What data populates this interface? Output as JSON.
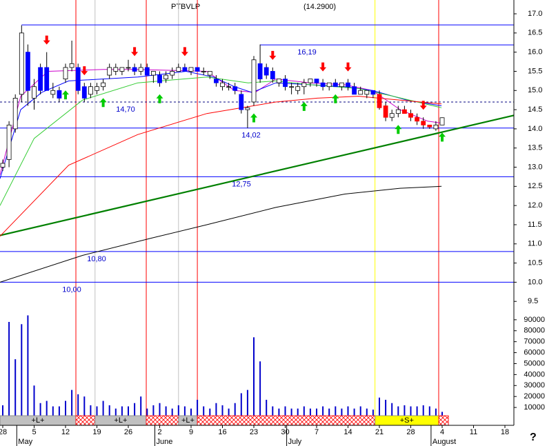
{
  "chart_data": [
    {
      "type": "candlestick",
      "title": "PTBVLP",
      "subtitle": "(14.2900)",
      "up_color": "#ffffff",
      "down_color": "#0000ff",
      "border_color": "#000000",
      "open": [
        13.0,
        13.2,
        14.0,
        14.9,
        16.0,
        14.8,
        15.6,
        15.6,
        14.9,
        15.0,
        15.3,
        15.6,
        15.6,
        15.1,
        14.9,
        15.0,
        15.1,
        15.4,
        15.5,
        15.5,
        15.6,
        15.6,
        15.5,
        15.6,
        15.4,
        15.4,
        15.3,
        15.4,
        15.5,
        15.6,
        15.5,
        15.6,
        15.5,
        15.4,
        15.3,
        15.1,
        15.1,
        15.1,
        14.9,
        14.5,
        14.7,
        15.7,
        15.6,
        15.5,
        15.2,
        15.3,
        15.1,
        15.0,
        15.1,
        15.2,
        15.3,
        15.2,
        15.1,
        15.2,
        15.1,
        15.2,
        15.1,
        14.9,
        14.9,
        15.0,
        14.9,
        14.6,
        14.3,
        14.4,
        14.5,
        14.4,
        14.3,
        14.2,
        14.1,
        14.0,
        14.1,
        null,
        null,
        null,
        null,
        null,
        null,
        null,
        null,
        null,
        null,
        null
      ],
      "high": [
        13.2,
        14.2,
        14.9,
        16.7,
        16.2,
        15.3,
        15.7,
        16.0,
        15.2,
        15.1,
        15.7,
        16.3,
        15.7,
        15.2,
        15.2,
        15.2,
        15.3,
        15.7,
        15.7,
        15.6,
        15.8,
        15.7,
        15.7,
        15.7,
        15.5,
        15.5,
        15.5,
        15.6,
        15.7,
        15.7,
        15.6,
        15.6,
        15.6,
        15.5,
        15.4,
        15.3,
        15.2,
        15.2,
        15.0,
        14.6,
        15.9,
        16.2,
        15.7,
        15.6,
        15.3,
        15.4,
        15.2,
        15.2,
        15.3,
        15.3,
        15.3,
        15.3,
        15.2,
        15.3,
        15.2,
        15.3,
        15.2,
        15.1,
        15.0,
        15.0,
        15.0,
        14.7,
        14.5,
        14.6,
        14.6,
        14.5,
        14.4,
        14.3,
        14.1,
        14.2,
        14.3,
        null,
        null,
        null,
        null,
        null,
        null,
        null,
        null,
        null,
        null,
        null
      ],
      "low": [
        12.9,
        13.0,
        13.9,
        14.7,
        14.6,
        14.5,
        14.9,
        15.0,
        14.8,
        14.7,
        15.2,
        15.5,
        14.9,
        14.7,
        14.8,
        14.9,
        15.0,
        15.3,
        15.4,
        15.4,
        15.5,
        15.4,
        15.4,
        15.4,
        15.2,
        15.1,
        15.2,
        15.3,
        15.5,
        15.5,
        15.4,
        15.5,
        15.4,
        15.3,
        15.1,
        15.0,
        15.0,
        14.9,
        14.4,
        14.02,
        14.6,
        15.2,
        15.3,
        15.2,
        15.1,
        15.0,
        14.9,
        14.9,
        14.9,
        15.1,
        15.1,
        15.0,
        15.0,
        15.1,
        15.0,
        15.0,
        14.9,
        14.9,
        14.8,
        14.8,
        14.5,
        14.2,
        14.2,
        14.3,
        14.4,
        14.2,
        14.1,
        14.0,
        14.0,
        13.95,
        14.1,
        null,
        null,
        null,
        null,
        null,
        null,
        null,
        null,
        null,
        null,
        null
      ],
      "close": [
        13.1,
        14.1,
        14.8,
        16.5,
        15.0,
        15.1,
        15.0,
        15.0,
        15.0,
        14.8,
        15.6,
        15.7,
        15.0,
        14.8,
        15.1,
        15.1,
        15.2,
        15.6,
        15.6,
        15.6,
        15.6,
        15.5,
        15.6,
        15.4,
        15.5,
        15.2,
        15.4,
        15.5,
        15.6,
        15.5,
        15.6,
        15.5,
        15.5,
        15.5,
        15.2,
        15.2,
        15.1,
        15.0,
        14.5,
        14.55,
        15.8,
        15.3,
        15.4,
        15.3,
        15.3,
        15.1,
        15.1,
        15.1,
        15.2,
        15.3,
        15.2,
        15.1,
        15.2,
        15.1,
        15.2,
        15.1,
        14.9,
        15.0,
        15.0,
        14.9,
        14.55,
        14.3,
        14.4,
        14.5,
        14.4,
        14.3,
        14.2,
        14.1,
        14.05,
        14.1,
        14.29,
        null,
        null,
        null,
        null,
        null,
        null,
        null,
        null,
        null,
        null,
        null
      ],
      "ylim": [
        9.45,
        17.36
      ],
      "yticks": [
        {
          "value": 9.5,
          "label": "9.5"
        },
        {
          "value": 10,
          "label": "10.0"
        },
        10.5,
        {
          "value": 11,
          "label": "11.0"
        },
        11.5,
        {
          "value": 12,
          "label": "12.0"
        },
        12.5,
        {
          "value": 13,
          "label": "13.0"
        },
        13.5,
        {
          "value": 14,
          "label": "14.0"
        },
        14.5,
        {
          "value": 15,
          "label": "15.0"
        },
        15.5,
        {
          "value": 16,
          "label": "16.0"
        },
        16.5,
        {
          "value": 17,
          "label": "17.0"
        }
      ],
      "lines": [
        {
          "color": "#cc00cc",
          "x": [
            -0.44,
            2.86,
            7.2,
            16.0,
            21.5,
            32.5,
            36.9,
            40.2,
            43.5,
            49.0,
            54.5,
            58.9,
            63.3,
            67.7,
            69.9
          ],
          "values": [
            12.8,
            14.85,
            15.5,
            15.55,
            15.55,
            15.5,
            15.0,
            14.95,
            15.3,
            15.2,
            15.15,
            15.0,
            14.5,
            14.2,
            14.15
          ]
        },
        {
          "color": "#0000ff",
          "x": [
            -0.44,
            2.86,
            6.2,
            10.5,
            21.5,
            29.2,
            33.6,
            36.9,
            39.7,
            43.5,
            49.0,
            54.5,
            58.9,
            64.4,
            69.9
          ],
          "values": [
            12.7,
            14.5,
            14.95,
            15.25,
            15.35,
            15.5,
            15.35,
            15.1,
            14.95,
            15.2,
            15.15,
            15.1,
            15.0,
            14.75,
            14.6
          ]
        },
        {
          "color": "#33cc33",
          "x": [
            -0.44,
            5.0,
            12.7,
            21.5,
            32.5,
            39.1,
            43.5,
            49.0,
            56.7,
            62.2,
            69.9
          ],
          "values": [
            12.0,
            13.75,
            14.75,
            15.2,
            15.35,
            15.2,
            15.25,
            15.15,
            15.05,
            14.85,
            14.55
          ]
        },
        {
          "color": "#ff0000",
          "x": [
            -0.44,
            10.5,
            21.5,
            32.5,
            43.5,
            50.1,
            56.7,
            63.3,
            69.9
          ],
          "values": [
            11.2,
            13.05,
            13.85,
            14.4,
            14.7,
            14.8,
            14.85,
            14.75,
            14.65
          ]
        },
        {
          "color": "#000000",
          "x": [
            -0.44,
            12.7,
            23.7,
            32.5,
            43.5,
            54.5,
            63.3,
            69.9
          ],
          "values": [
            10.0,
            10.7,
            11.15,
            11.5,
            11.95,
            12.3,
            12.45,
            12.5
          ]
        }
      ],
      "trendline": {
        "color": "#008000",
        "x": [
          -0.44,
          81.4
        ],
        "values": [
          11.22,
          14.35
        ]
      },
      "levels": [
        {
          "value": 16.71,
          "from": 3,
          "color": "#0000ff"
        },
        {
          "value": 16.19,
          "from": 41,
          "label": "16,19",
          "color": "#0000ff"
        },
        {
          "value": 14.7,
          "label": "14,70",
          "color": "#000080",
          "dashed": true
        },
        {
          "value": 14.02,
          "label": "14,02",
          "color": "#0000ff"
        },
        {
          "value": 12.75,
          "label": "12,75",
          "color": "#0000ff"
        },
        {
          "value": 10.8,
          "label": "10,80",
          "color": "#0000ff"
        },
        {
          "value": 10.0,
          "label": "10,00",
          "color": "#0000ff"
        }
      ],
      "label_color": "#0000cc",
      "sell_signals": [
        7,
        13,
        21,
        29,
        43,
        51,
        55,
        67
      ],
      "sell_color": "#ff0000",
      "buy_signals": [
        10,
        16,
        25,
        40,
        48,
        53,
        63,
        70
      ],
      "buy_color": "#00cc00",
      "vlines": [
        {
          "x": 11.65,
          "color": "#ff0000"
        },
        {
          "x": 14.7,
          "color": "#c0c0c0"
        },
        {
          "x": 22.86,
          "color": "#ff0000"
        },
        {
          "x": 28.0,
          "color": "#c0c0c0"
        },
        {
          "x": 31.0,
          "color": "#ff0000"
        },
        {
          "x": 59.3,
          "color": "#ffff00"
        },
        {
          "x": 69.45,
          "color": "#ff0000"
        }
      ],
      "segments": [
        {
          "label": "+L+",
          "from": -0.44,
          "to": 11.65,
          "color": "#c0c0c0"
        },
        {
          "from": 11.65,
          "to": 14.7,
          "color": "#ff0000",
          "hatched": true
        },
        {
          "label": "+L+",
          "from": 14.7,
          "to": 22.86,
          "color": "#c0c0c0"
        },
        {
          "from": 22.86,
          "to": 28.0,
          "color": "#ff0000",
          "hatched": true
        },
        {
          "label": "+L+",
          "from": 28.0,
          "to": 31.0,
          "color": "#c0c0c0"
        },
        {
          "from": 31.0,
          "to": 59.3,
          "color": "#ff0000",
          "hatched": true
        },
        {
          "label": "+S+",
          "from": 59.3,
          "to": 69.45,
          "color": "#ffff00",
          "down_color": "#ff0000"
        },
        {
          "from": 69.45,
          "to": 71.0,
          "color": "#ff0000",
          "hatched": true
        }
      ]
    },
    {
      "type": "bar",
      "color": "#0000cc",
      "categories": [
        "28",
        null,
        null,
        null,
        null,
        "5",
        null,
        null,
        null,
        null,
        "12",
        null,
        null,
        null,
        null,
        "19",
        null,
        null,
        null,
        null,
        "26",
        null,
        null,
        null,
        null,
        "2",
        null,
        null,
        null,
        null,
        "9",
        null,
        null,
        null,
        null,
        "16",
        null,
        null,
        null,
        null,
        "23",
        null,
        null,
        null,
        null,
        "30",
        null,
        null,
        null,
        null,
        "7",
        null,
        null,
        null,
        null,
        "14",
        null,
        null,
        null,
        null,
        "21",
        null,
        null,
        null,
        null,
        "28",
        null,
        null,
        null,
        null,
        "4",
        null,
        null,
        null,
        null,
        "11",
        null,
        null,
        null,
        null,
        "18",
        null
      ],
      "months": [
        {
          "label": "May",
          "at": 3
        },
        {
          "label": "June",
          "at": 25
        },
        {
          "label": "July",
          "at": 46
        },
        {
          "label": "August",
          "at": 69
        }
      ],
      "values": [
        12000,
        88000,
        54000,
        86000,
        94000,
        30000,
        14000,
        16000,
        11000,
        11000,
        16000,
        26000,
        22000,
        20000,
        12000,
        11000,
        16000,
        12000,
        9000,
        11000,
        11000,
        14000,
        20000,
        9000,
        12000,
        14000,
        11000,
        9000,
        12000,
        11000,
        9000,
        17000,
        11000,
        9000,
        14000,
        12000,
        9000,
        14000,
        23000,
        26000,
        74000,
        52000,
        17000,
        11000,
        9000,
        11000,
        9000,
        9000,
        11000,
        9000,
        9000,
        11000,
        9000,
        11000,
        9000,
        11000,
        9000,
        11000,
        9000,
        8000,
        19000,
        17000,
        14000,
        11000,
        12000,
        11000,
        11000,
        12000,
        11000,
        9000,
        6000,
        null,
        null,
        null,
        null,
        null,
        null,
        null,
        null,
        null,
        null,
        null
      ],
      "ylim": [
        0,
        105000
      ],
      "yticks": [
        10000,
        20000,
        30000,
        40000,
        50000,
        60000,
        70000,
        80000,
        90000
      ],
      "footnote": "?"
    }
  ]
}
